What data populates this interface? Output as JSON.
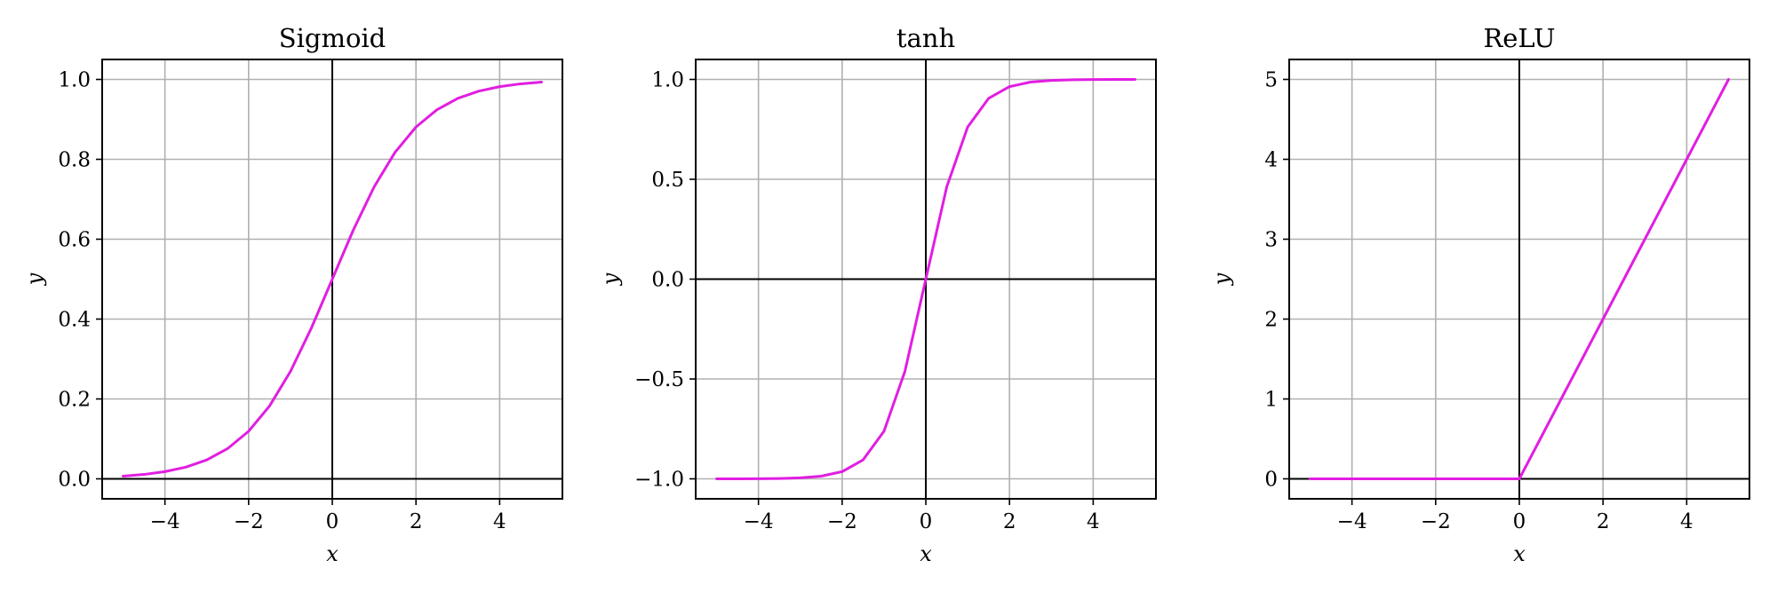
{
  "chart_data": [
    {
      "type": "line",
      "title": "Sigmoid",
      "xlabel": "x",
      "ylabel": "y",
      "function": "sigmoid",
      "xlim": [
        -5.5,
        5.5
      ],
      "ylim": [
        -0.05,
        1.05
      ],
      "xticks": [
        -4,
        -2,
        0,
        2,
        4
      ],
      "xtick_labels": [
        "−4",
        "−2",
        "0",
        "2",
        "4"
      ],
      "yticks": [
        0.0,
        0.2,
        0.4,
        0.6,
        0.8,
        1.0
      ],
      "ytick_labels": [
        "0.0",
        "0.2",
        "0.4",
        "0.6",
        "0.8",
        "1.0"
      ],
      "grid": true,
      "series": [
        {
          "color": "#e11ee1",
          "x": [
            -5,
            -4.5,
            -4,
            -3.5,
            -3,
            -2.5,
            -2,
            -1.5,
            -1,
            -0.5,
            0,
            0.5,
            1,
            1.5,
            2,
            2.5,
            3,
            3.5,
            4,
            4.5,
            5
          ],
          "y": [
            0.0067,
            0.011,
            0.018,
            0.0293,
            0.0474,
            0.0759,
            0.1192,
            0.1824,
            0.2689,
            0.3775,
            0.5,
            0.6225,
            0.7311,
            0.8176,
            0.8808,
            0.9241,
            0.9526,
            0.9707,
            0.982,
            0.989,
            0.9933
          ]
        }
      ]
    },
    {
      "type": "line",
      "title": "tanh",
      "xlabel": "x",
      "ylabel": "y",
      "function": "tanh",
      "xlim": [
        -5.5,
        5.5
      ],
      "ylim": [
        -1.1,
        1.1
      ],
      "xticks": [
        -4,
        -2,
        0,
        2,
        4
      ],
      "xtick_labels": [
        "−4",
        "−2",
        "0",
        "2",
        "4"
      ],
      "yticks": [
        -1.0,
        -0.5,
        0.0,
        0.5,
        1.0
      ],
      "ytick_labels": [
        "−1.0",
        "−0.5",
        "0.0",
        "0.5",
        "1.0"
      ],
      "grid": true,
      "series": [
        {
          "color": "#e11ee1",
          "x": [
            -5,
            -4.5,
            -4,
            -3.5,
            -3,
            -2.5,
            -2,
            -1.5,
            -1,
            -0.5,
            0,
            0.5,
            1,
            1.5,
            2,
            2.5,
            3,
            3.5,
            4,
            4.5,
            5
          ],
          "y": [
            -0.9999,
            -0.9998,
            -0.9993,
            -0.9982,
            -0.9951,
            -0.9866,
            -0.964,
            -0.9051,
            -0.7616,
            -0.4621,
            0.0,
            0.4621,
            0.7616,
            0.9051,
            0.964,
            0.9866,
            0.9951,
            0.9982,
            0.9993,
            0.9998,
            0.9999
          ]
        }
      ]
    },
    {
      "type": "line",
      "title": "ReLU",
      "xlabel": "x",
      "ylabel": "y",
      "function": "relu",
      "xlim": [
        -5.5,
        5.5
      ],
      "ylim": [
        -0.25,
        5.25
      ],
      "xticks": [
        -4,
        -2,
        0,
        2,
        4
      ],
      "xtick_labels": [
        "−4",
        "−2",
        "0",
        "2",
        "4"
      ],
      "yticks": [
        0,
        1,
        2,
        3,
        4,
        5
      ],
      "ytick_labels": [
        "0",
        "1",
        "2",
        "3",
        "4",
        "5"
      ],
      "grid": true,
      "series": [
        {
          "color": "#e11ee1",
          "x": [
            -5,
            -4.5,
            -4,
            -3.5,
            -3,
            -2.5,
            -2,
            -1.5,
            -1,
            -0.5,
            0,
            0.5,
            1,
            1.5,
            2,
            2.5,
            3,
            3.5,
            4,
            4.5,
            5
          ],
          "y": [
            0,
            0,
            0,
            0,
            0,
            0,
            0,
            0,
            0,
            0,
            0,
            0.5,
            1,
            1.5,
            2,
            2.5,
            3,
            3.5,
            4,
            4.5,
            5
          ]
        }
      ]
    }
  ]
}
